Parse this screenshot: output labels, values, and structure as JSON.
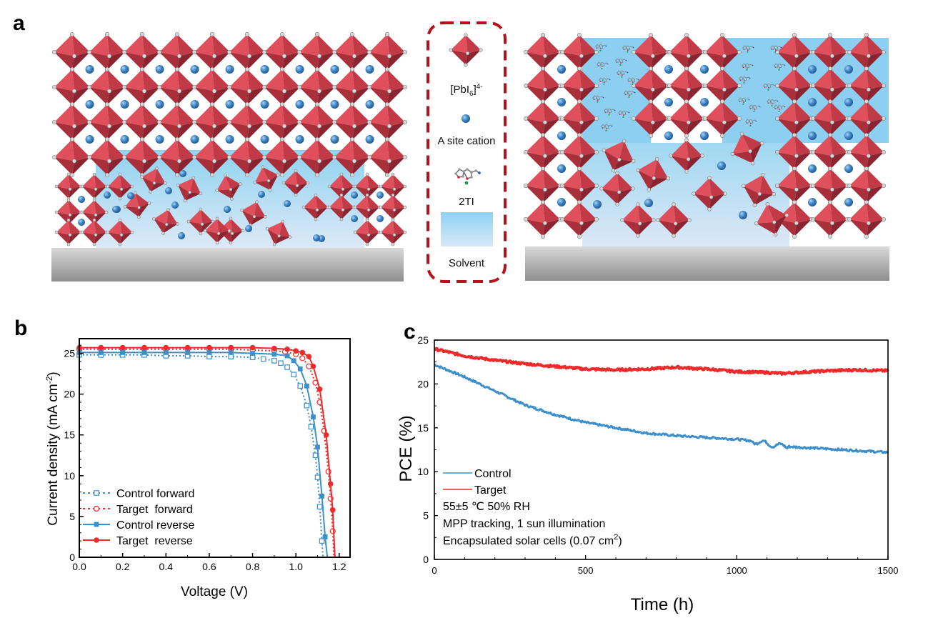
{
  "panels": {
    "a": {
      "label": "a"
    },
    "b": {
      "label": "b"
    },
    "c": {
      "label": "c"
    }
  },
  "legend_a": {
    "items": [
      {
        "icon": "octahedron-icon",
        "label": "[PbI",
        "sub": "6",
        "sup": "4-"
      },
      {
        "icon": "cation-sphere-icon",
        "label": "A site cation"
      },
      {
        "icon": "molecule-icon",
        "label": "2TI"
      },
      {
        "icon": "solvent-block-icon",
        "label": "Solvent"
      }
    ],
    "border_color": "#b5121b"
  },
  "colors": {
    "octahedron": "#d2444f",
    "octahedron_dark": "#9e2a35",
    "cation": "#3f86c6",
    "solvent": "#8fd3f0",
    "substrate": "#b8b8b8",
    "control": "#3d8fcb",
    "target": "#ee2a2a"
  },
  "chart_data": [
    {
      "type": "line",
      "panel": "b",
      "xlabel": "Voltage (V)",
      "ylabel": "Current density (mA cm",
      "ylabel_sup": "-2",
      "ylabel_end": ")",
      "xlim": [
        0,
        1.25
      ],
      "ylim": [
        0,
        26.8
      ],
      "xticks": [
        0.0,
        0.2,
        0.4,
        0.6,
        0.8,
        1.0,
        1.2
      ],
      "xtick_labels": [
        "0.0",
        "0.2",
        "0.4",
        "0.6",
        "0.8",
        "1.0",
        "1.2"
      ],
      "yticks": [
        0,
        5,
        10,
        15,
        20,
        25
      ],
      "ytick_labels": [
        "0",
        "5",
        "10",
        "15",
        "20",
        "25"
      ],
      "legend_position": "bottom-left",
      "series": [
        {
          "name": "Control forward",
          "style": "dotted",
          "marker": "open-square",
          "color": "#3d8fcb",
          "x": [
            0,
            0.1,
            0.2,
            0.3,
            0.4,
            0.5,
            0.6,
            0.7,
            0.8,
            0.85,
            0.9,
            0.93,
            0.96,
            0.99,
            1.02,
            1.05,
            1.07,
            1.09,
            1.1,
            1.11,
            1.12,
            1.125
          ],
          "y": [
            24.8,
            24.8,
            24.8,
            24.8,
            24.7,
            24.7,
            24.6,
            24.6,
            24.5,
            24.3,
            24.1,
            23.8,
            23.3,
            22.4,
            21.0,
            18.6,
            16.0,
            12.5,
            9.8,
            6.2,
            2.0,
            0
          ]
        },
        {
          "name": "Target  forward",
          "style": "dotted",
          "marker": "open-circle",
          "color": "#ee2a2a",
          "x": [
            0,
            0.1,
            0.2,
            0.3,
            0.4,
            0.5,
            0.6,
            0.7,
            0.8,
            0.9,
            0.95,
            1.0,
            1.03,
            1.06,
            1.09,
            1.11,
            1.13,
            1.15,
            1.16,
            1.17,
            1.175
          ],
          "y": [
            25.5,
            25.5,
            25.5,
            25.5,
            25.5,
            25.5,
            25.5,
            25.5,
            25.4,
            25.3,
            25.2,
            24.9,
            24.4,
            23.4,
            21.4,
            19.0,
            15.5,
            10.5,
            7.2,
            3.2,
            0
          ]
        },
        {
          "name": "Control reverse",
          "style": "solid",
          "marker": "filled-square",
          "color": "#3d8fcb",
          "x": [
            0,
            0.1,
            0.2,
            0.3,
            0.4,
            0.5,
            0.6,
            0.7,
            0.8,
            0.9,
            0.96,
            0.99,
            1.02,
            1.05,
            1.08,
            1.1,
            1.12,
            1.135,
            1.145
          ],
          "y": [
            25.1,
            25.1,
            25.1,
            25.1,
            25.1,
            25.1,
            25.1,
            25.1,
            25.0,
            24.9,
            24.7,
            24.1,
            23.1,
            21.0,
            17.2,
            13.5,
            7.5,
            2.5,
            0
          ]
        },
        {
          "name": "Target  reverse",
          "style": "solid",
          "marker": "filled-circle",
          "color": "#ee2a2a",
          "x": [
            0,
            0.1,
            0.2,
            0.3,
            0.4,
            0.5,
            0.6,
            0.7,
            0.8,
            0.9,
            0.96,
            1.0,
            1.03,
            1.06,
            1.08,
            1.11,
            1.14,
            1.16,
            1.17,
            1.18
          ],
          "y": [
            25.7,
            25.7,
            25.7,
            25.7,
            25.7,
            25.7,
            25.7,
            25.7,
            25.7,
            25.6,
            25.5,
            25.3,
            25.1,
            24.6,
            23.4,
            20.6,
            15.0,
            9.0,
            5.8,
            0
          ]
        }
      ]
    },
    {
      "type": "line",
      "panel": "c",
      "xlabel": "Time (h)",
      "ylabel": "PCE (%)",
      "xlim": [
        0,
        1500
      ],
      "ylim": [
        0,
        25
      ],
      "xticks": [
        0,
        500,
        1000,
        1500
      ],
      "xtick_labels": [
        "0",
        "500",
        "1000",
        "1500"
      ],
      "yticks": [
        0,
        5,
        10,
        15,
        20,
        25
      ],
      "ytick_labels": [
        "0",
        "5",
        "10",
        "15",
        "20",
        "25"
      ],
      "legend_position": "bottom-left",
      "annotations": [
        "55±5 ℃ 50% RH",
        "MPP tracking, 1 sun illumination",
        "Encapsulated solar cells (0.07 cm",
        "2",
        ")"
      ],
      "series": [
        {
          "name": "Control",
          "color": "#3d8fcb",
          "x": [
            0,
            100,
            200,
            300,
            400,
            500,
            600,
            650,
            700,
            800,
            900,
            1000,
            1050,
            1100,
            1150,
            1200,
            1300,
            1400,
            1500
          ],
          "y": [
            22.2,
            20.8,
            19.2,
            17.6,
            16.5,
            15.6,
            15.0,
            14.7,
            14.4,
            14.1,
            13.9,
            13.7,
            13.5,
            13.2,
            12.9,
            12.8,
            12.6,
            12.4,
            12.2
          ]
        },
        {
          "name": "Target",
          "color": "#ee2a2a",
          "x": [
            0,
            100,
            200,
            300,
            400,
            500,
            600,
            700,
            800,
            900,
            1000,
            1100,
            1150,
            1200,
            1300,
            1400,
            1500
          ],
          "y": [
            24.0,
            23.2,
            22.7,
            22.3,
            22.0,
            21.7,
            21.6,
            21.7,
            21.9,
            21.7,
            21.4,
            21.3,
            21.2,
            21.3,
            21.5,
            21.6,
            21.5
          ]
        }
      ]
    }
  ]
}
